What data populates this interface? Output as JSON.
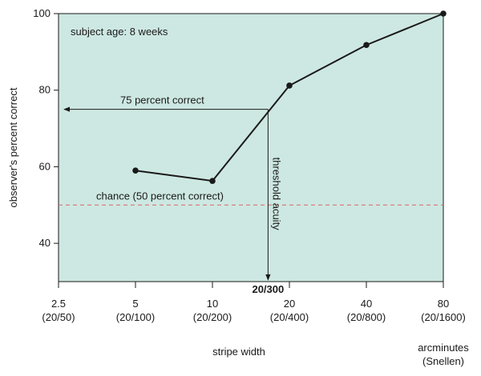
{
  "chart_data": {
    "type": "line",
    "x_scale": "log2",
    "xlabel": "stripe width",
    "ylabel": "observer's percent correct",
    "units_label": [
      "arcminutes",
      "(Snellen)"
    ],
    "xlim": [
      2.5,
      80
    ],
    "ylim": [
      30,
      100
    ],
    "y_ticks": [
      40,
      60,
      80,
      100
    ],
    "x_ticks": [
      {
        "value": 2.5,
        "label": "2.5",
        "snellen": "(20/50)"
      },
      {
        "value": 5,
        "label": "5",
        "snellen": "(20/100)"
      },
      {
        "value": 10,
        "label": "10",
        "snellen": "(20/200)"
      },
      {
        "value": 20,
        "label": "20",
        "snellen": "(20/400)"
      },
      {
        "value": 40,
        "label": "40",
        "snellen": "(20/800)"
      },
      {
        "value": 80,
        "label": "80",
        "snellen": "(20/1600)"
      }
    ],
    "series": [
      {
        "name": "observer",
        "points": [
          {
            "x": 5,
            "y": 59
          },
          {
            "x": 10,
            "y": 56.3
          },
          {
            "x": 20,
            "y": 81.2
          },
          {
            "x": 40,
            "y": 91.8
          },
          {
            "x": 80,
            "y": 100
          }
        ]
      }
    ],
    "annotations": {
      "subject": "subject age: 8 weeks",
      "criterion": {
        "label": "75 percent correct",
        "y": 75
      },
      "chance": {
        "label": "chance (50 percent correct)",
        "y": 50
      },
      "threshold": {
        "label": "threshold acuity",
        "x": 16.5,
        "x_label": "20/300"
      }
    },
    "colors": {
      "plot_background": "#cde8e2",
      "line": "#1a1a1a",
      "chance_line": "#d9666a",
      "annotation": "#1a1a1a"
    }
  }
}
